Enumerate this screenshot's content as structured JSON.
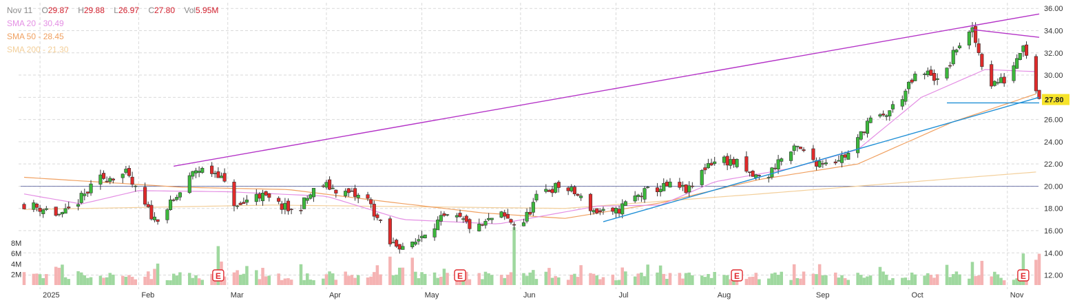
{
  "header": {
    "date": "Nov 11",
    "open_label": "O",
    "open": "29.87",
    "high_label": "H",
    "high": "29.88",
    "low_label": "L",
    "low": "26.97",
    "close_label": "C",
    "close": "27.80",
    "vol_label": "Vol",
    "vol": "5.95M"
  },
  "sma": [
    {
      "label": "SMA 20",
      "value": "30.49",
      "color": "#e48fe4"
    },
    {
      "label": "SMA 50",
      "value": "28.45",
      "color": "#f0a060"
    },
    {
      "label": "SMA 200",
      "value": "21.30",
      "color": "#f3cf9a"
    }
  ],
  "colors": {
    "up": "#3cb83c",
    "down": "#e02b2b",
    "vol_up": "#9fd89f",
    "vol_down": "#f5b3b3",
    "trendline": "#b433c7",
    "support": "#1f8fd6",
    "ref_line": "#555d9a",
    "grid": "#d9d9d9",
    "axis_text": "#333333",
    "price_tag_bg": "#f6e32a"
  },
  "chart_data": {
    "type": "candlestick",
    "x_labels": [
      {
        "date": "2025-01-01",
        "label": "2025"
      },
      {
        "date": "2025-02-01",
        "label": "Feb"
      },
      {
        "date": "2025-03-01",
        "label": "Mar"
      },
      {
        "date": "2025-04-01",
        "label": "Apr"
      },
      {
        "date": "2025-05-01",
        "label": "May"
      },
      {
        "date": "2025-06-01",
        "label": "Jun"
      },
      {
        "date": "2025-07-01",
        "label": "Jul"
      },
      {
        "date": "2025-08-01",
        "label": "Aug"
      },
      {
        "date": "2025-09-01",
        "label": "Sep"
      },
      {
        "date": "2025-10-01",
        "label": "Oct"
      },
      {
        "date": "2025-11-01",
        "label": "Nov"
      }
    ],
    "x_range": [
      "2024-12-27",
      "2025-11-11"
    ],
    "y_range": [
      11.6,
      36.2
    ],
    "y_ticks": [
      "12.00",
      "14.00",
      "16.00",
      "18.00",
      "20.00",
      "22.00",
      "24.00",
      "26.00",
      "28.00",
      "30.00",
      "32.00",
      "34.00",
      "36.00"
    ],
    "volume_ticks": [
      "2M",
      "4M",
      "6M",
      "8M"
    ],
    "volume_range": [
      0,
      11
    ],
    "last_price_label": "27.80",
    "last_price": 27.8,
    "reference_level": 20.0,
    "anchors": [
      {
        "date": "2024-12-27",
        "price": 18.4
      },
      {
        "date": "2025-01-03",
        "price": 17.9
      },
      {
        "date": "2025-01-08",
        "price": 17.3
      },
      {
        "date": "2025-01-15",
        "price": 19.2
      },
      {
        "date": "2025-01-20",
        "price": 20.7
      },
      {
        "date": "2025-01-28",
        "price": 21.1
      },
      {
        "date": "2025-02-03",
        "price": 18.2
      },
      {
        "date": "2025-02-06",
        "price": 17.0
      },
      {
        "date": "2025-02-12",
        "price": 18.6
      },
      {
        "date": "2025-02-19",
        "price": 21.5
      },
      {
        "date": "2025-02-26",
        "price": 21.2
      },
      {
        "date": "2025-03-04",
        "price": 18.0
      },
      {
        "date": "2025-03-10",
        "price": 19.4
      },
      {
        "date": "2025-03-15",
        "price": 18.6
      },
      {
        "date": "2025-03-22",
        "price": 17.6
      },
      {
        "date": "2025-03-30",
        "price": 20.2
      },
      {
        "date": "2025-04-07",
        "price": 19.4
      },
      {
        "date": "2025-04-14",
        "price": 18.8
      },
      {
        "date": "2025-04-21",
        "price": 14.8
      },
      {
        "date": "2025-04-28",
        "price": 14.6
      },
      {
        "date": "2025-05-03",
        "price": 16.3
      },
      {
        "date": "2025-05-08",
        "price": 17.1
      },
      {
        "date": "2025-05-13",
        "price": 17.0
      },
      {
        "date": "2025-05-18",
        "price": 16.0
      },
      {
        "date": "2025-05-25",
        "price": 17.5
      },
      {
        "date": "2025-06-01",
        "price": 16.3
      },
      {
        "date": "2025-06-07",
        "price": 19.4
      },
      {
        "date": "2025-06-13",
        "price": 20.0
      },
      {
        "date": "2025-06-18",
        "price": 19.4
      },
      {
        "date": "2025-06-24",
        "price": 17.8
      },
      {
        "date": "2025-06-30",
        "price": 17.4
      },
      {
        "date": "2025-07-05",
        "price": 18.7
      },
      {
        "date": "2025-07-12",
        "price": 19.7
      },
      {
        "date": "2025-07-18",
        "price": 20.0
      },
      {
        "date": "2025-07-24",
        "price": 19.6
      },
      {
        "date": "2025-07-30",
        "price": 22.1
      },
      {
        "date": "2025-08-04",
        "price": 22.4
      },
      {
        "date": "2025-08-08",
        "price": 22.0
      },
      {
        "date": "2025-08-12",
        "price": 21.0
      },
      {
        "date": "2025-08-17",
        "price": 20.6
      },
      {
        "date": "2025-08-21",
        "price": 22.3
      },
      {
        "date": "2025-08-27",
        "price": 23.4
      },
      {
        "date": "2025-09-02",
        "price": 22.2
      },
      {
        "date": "2025-09-08",
        "price": 22.4
      },
      {
        "date": "2025-09-13",
        "price": 23.0
      },
      {
        "date": "2025-09-18",
        "price": 25.8
      },
      {
        "date": "2025-09-23",
        "price": 26.2
      },
      {
        "date": "2025-09-28",
        "price": 27.7
      },
      {
        "date": "2025-10-03",
        "price": 29.8
      },
      {
        "date": "2025-10-08",
        "price": 30.2
      },
      {
        "date": "2025-10-11",
        "price": 29.0
      },
      {
        "date": "2025-10-16",
        "price": 32.5
      },
      {
        "date": "2025-10-21",
        "price": 33.9
      },
      {
        "date": "2025-10-26",
        "price": 29.2
      },
      {
        "date": "2025-11-01",
        "price": 29.6
      },
      {
        "date": "2025-11-06",
        "price": 33.0
      },
      {
        "date": "2025-11-11",
        "price": 27.8
      }
    ],
    "volume_spikes": [
      {
        "date": "2025-02-26",
        "value": 7.4
      },
      {
        "date": "2025-04-21",
        "value": 5.4
      },
      {
        "date": "2025-04-28",
        "value": 5.2
      },
      {
        "date": "2025-05-30",
        "value": 11.0
      },
      {
        "date": "2025-09-28",
        "value": 4.2
      },
      {
        "date": "2025-10-21",
        "value": 4.4
      },
      {
        "date": "2025-10-24",
        "value": 4.6
      },
      {
        "date": "2025-11-06",
        "value": 6.0
      },
      {
        "date": "2025-11-10",
        "value": 4.8
      },
      {
        "date": "2025-11-11",
        "value": 5.95
      }
    ],
    "earnings_markers": [
      {
        "date": "2025-02-26",
        "label": "E"
      },
      {
        "date": "2025-05-13",
        "label": "E"
      },
      {
        "date": "2025-08-08",
        "label": "E"
      },
      {
        "date": "2025-11-06",
        "label": "E"
      }
    ],
    "trendlines": [
      {
        "kind": "resistance",
        "from": {
          "date": "2025-02-12",
          "price": 21.8
        },
        "to": {
          "date": "2025-11-11",
          "price": 35.5
        }
      },
      {
        "kind": "resistance",
        "from": {
          "date": "2025-10-21",
          "price": 34.1
        },
        "to": {
          "date": "2025-11-11",
          "price": 33.4
        }
      },
      {
        "kind": "support",
        "from": {
          "date": "2025-06-27",
          "price": 16.8
        },
        "to": {
          "date": "2025-11-11",
          "price": 28.0
        }
      },
      {
        "kind": "horizontal",
        "from": {
          "date": "2025-10-13",
          "price": 27.5
        },
        "to": {
          "date": "2025-11-11",
          "price": 27.5
        }
      }
    ],
    "sma20_path": [
      {
        "date": "2024-12-27",
        "price": 19.3
      },
      {
        "date": "2025-01-14",
        "price": 18.4
      },
      {
        "date": "2025-02-01",
        "price": 19.6
      },
      {
        "date": "2025-03-01",
        "price": 19.5
      },
      {
        "date": "2025-04-01",
        "price": 19.1
      },
      {
        "date": "2025-04-25",
        "price": 17.0
      },
      {
        "date": "2025-05-25",
        "price": 16.6
      },
      {
        "date": "2025-06-25",
        "price": 18.2
      },
      {
        "date": "2025-07-15",
        "price": 18.3
      },
      {
        "date": "2025-08-01",
        "price": 20.4
      },
      {
        "date": "2025-08-25",
        "price": 21.6
      },
      {
        "date": "2025-09-15",
        "price": 23.3
      },
      {
        "date": "2025-10-05",
        "price": 28.0
      },
      {
        "date": "2025-10-25",
        "price": 30.5
      },
      {
        "date": "2025-11-11",
        "price": 30.3
      }
    ],
    "sma50_path": [
      {
        "date": "2024-12-27",
        "price": 20.8
      },
      {
        "date": "2025-02-15",
        "price": 19.9
      },
      {
        "date": "2025-03-20",
        "price": 19.7
      },
      {
        "date": "2025-04-20",
        "price": 18.6
      },
      {
        "date": "2025-05-20",
        "price": 17.6
      },
      {
        "date": "2025-06-15",
        "price": 17.1
      },
      {
        "date": "2025-07-15",
        "price": 18.5
      },
      {
        "date": "2025-08-15",
        "price": 20.6
      },
      {
        "date": "2025-09-15",
        "price": 22.0
      },
      {
        "date": "2025-10-15",
        "price": 25.8
      },
      {
        "date": "2025-11-11",
        "price": 28.4
      }
    ],
    "sma200_path": [
      {
        "date": "2024-12-27",
        "price": 17.9
      },
      {
        "date": "2025-03-15",
        "price": 18.3
      },
      {
        "date": "2025-06-15",
        "price": 18.0
      },
      {
        "date": "2025-08-15",
        "price": 19.3
      },
      {
        "date": "2025-11-11",
        "price": 21.3
      }
    ]
  }
}
